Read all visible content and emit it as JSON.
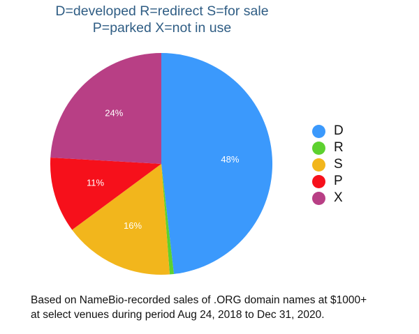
{
  "chart_data": {
    "type": "pie",
    "title_lines": [
      "D=developed  R=redirect  S=for sale",
      "P=parked  X=not in use"
    ],
    "slices": [
      {
        "label": "D",
        "value": 48,
        "display": "48%",
        "color": "#3b99fc"
      },
      {
        "label": "R",
        "value": 0.6,
        "display": "",
        "color": "#5dd12f"
      },
      {
        "label": "S",
        "value": 16,
        "display": "16%",
        "color": "#f2b61c"
      },
      {
        "label": "P",
        "value": 11,
        "display": "11%",
        "color": "#f6101b"
      },
      {
        "label": "X",
        "value": 24,
        "display": "24%",
        "color": "#b83f85"
      }
    ],
    "start_angle": "12 o'clock, clockwise",
    "legend_position": "right",
    "footnote_lines": [
      "Based on NameBio-recorded sales of .ORG domain names at $1000+",
      "at select venues during period Aug 24, 2018 to Dec 31, 2020."
    ]
  }
}
